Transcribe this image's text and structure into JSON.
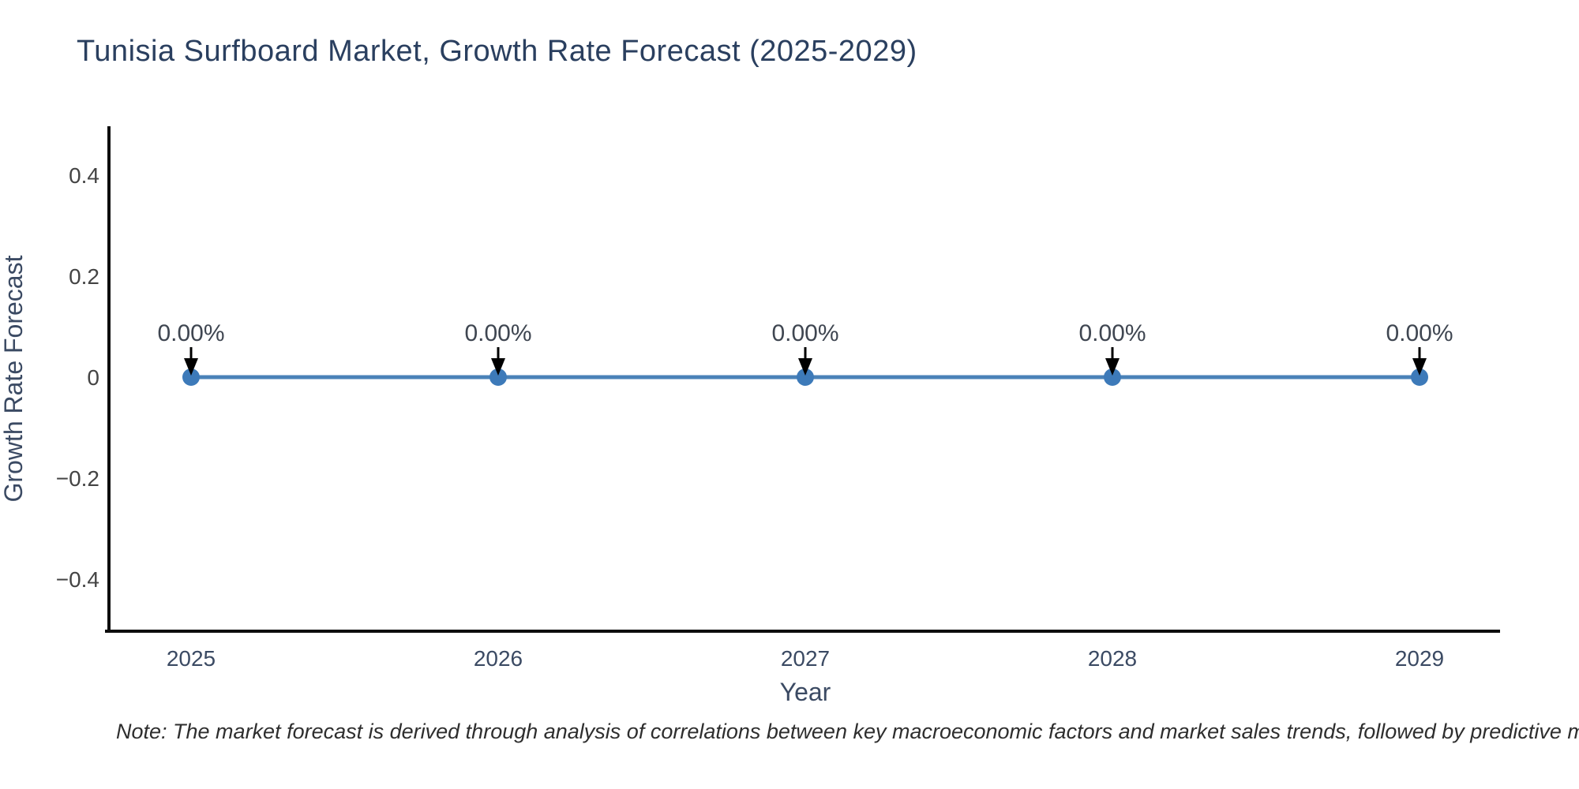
{
  "chart_data": {
    "type": "line",
    "title": "Tunisia Surfboard Market, Growth Rate Forecast (2025-2029)",
    "xlabel": "Year",
    "ylabel": "Growth Rate Forecast",
    "x": [
      "2025",
      "2026",
      "2027",
      "2028",
      "2029"
    ],
    "series": [
      {
        "name": "Growth Rate Forecast",
        "values": [
          0,
          0,
          0,
          0,
          0
        ]
      }
    ],
    "point_labels": [
      "0.00%",
      "0.00%",
      "0.00%",
      "0.00%",
      "0.00%"
    ],
    "yticks": [
      0.4,
      0.2,
      0,
      -0.2,
      -0.4
    ],
    "ytick_labels": [
      "0.4",
      "0.2",
      "0",
      "−0.2",
      "−0.4"
    ],
    "ylim": [
      -0.5,
      0.5
    ],
    "grid": false,
    "legend_visible": false,
    "annotations_have_arrows": true
  },
  "note": "Note: The market forecast is derived through analysis of correlations between key macroeconomic factors and market sales trends, followed by predictive modeling to project future sales based on anticipated economic conditions.",
  "colors": {
    "title": "#2a3f5f",
    "axis_title": "#3b4a63",
    "x_tick": "#3b4a63",
    "y_tick": "#444444",
    "annotation_text": "#3f4651",
    "arrow": "#000000",
    "line": "#4a82b8",
    "marker": "#3d7ab9",
    "spine": "#0d0d0d",
    "background": "#ffffff"
  }
}
